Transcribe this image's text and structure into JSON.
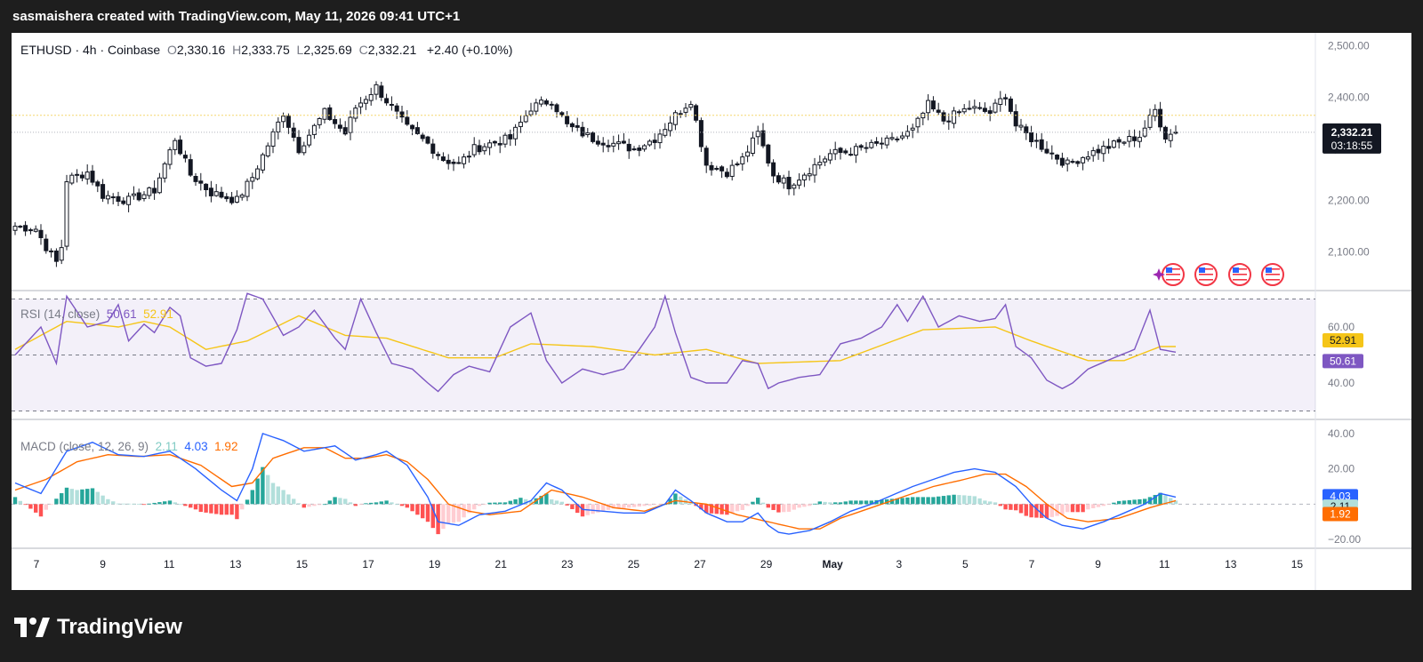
{
  "header": {
    "attribution": "sasmaishera created with TradingView.com, May 11, 2026 09:41 UTC+1"
  },
  "footer": {
    "brand": "TradingView"
  },
  "colors": {
    "bull": "#089981",
    "bear": "#f23645",
    "rsi": "#7e57c2",
    "rsi_ma": "#f5c518",
    "macd": "#2962ff",
    "signal": "#ff6d00",
    "hist_up_strong": "#26a69a",
    "hist_up_weak": "#b2dfdb",
    "hist_dn_strong": "#ff5252",
    "hist_dn_weak": "#ffcdd2"
  },
  "icons": [
    "tradingview-logo-icon",
    "us-flag-event-icon",
    "sparkle-icon"
  ],
  "chart_data": [
    {
      "type": "candlestick",
      "title": "ETHUSD · 4h · Coinbase",
      "ohlc_labels": [
        "O",
        "H",
        "L",
        "C"
      ],
      "ohlc_values": [
        "2,330.16",
        "2,333.75",
        "2,325.69",
        "2,332.21"
      ],
      "change": "+2.40 (+0.10%)",
      "y_ticks": [
        "2,500.00",
        "2,400.00",
        "2,300.00",
        "2,200.00",
        "2,100.00"
      ],
      "y_tick_values": [
        2500,
        2400,
        2300,
        2200,
        2100
      ],
      "ylim": [
        2025,
        2525
      ],
      "last_price_label": "2,332.21",
      "last_price": 2332.21,
      "countdown": "03:18:55",
      "x_ticks": [
        "7",
        "9",
        "11",
        "13",
        "15",
        "17",
        "19",
        "21",
        "23",
        "25",
        "27",
        "29",
        "May",
        "3",
        "5",
        "7",
        "9",
        "11",
        "13",
        "15"
      ],
      "anchor_closes": [
        [
          0,
          2150
        ],
        [
          4,
          2145
        ],
        [
          6,
          2110
        ],
        [
          8,
          2080
        ],
        [
          9,
          2110
        ],
        [
          10,
          2240
        ],
        [
          14,
          2255
        ],
        [
          17,
          2210
        ],
        [
          22,
          2200
        ],
        [
          27,
          2220
        ],
        [
          31,
          2320
        ],
        [
          34,
          2250
        ],
        [
          38,
          2215
        ],
        [
          43,
          2200
        ],
        [
          46,
          2245
        ],
        [
          52,
          2370
        ],
        [
          55,
          2300
        ],
        [
          60,
          2370
        ],
        [
          64,
          2330
        ],
        [
          66,
          2380
        ],
        [
          70,
          2420
        ],
        [
          73,
          2380
        ],
        [
          76,
          2340
        ],
        [
          80,
          2310
        ],
        [
          83,
          2280
        ],
        [
          86,
          2270
        ],
        [
          89,
          2300
        ],
        [
          92,
          2310
        ],
        [
          96,
          2320
        ],
        [
          100,
          2380
        ],
        [
          104,
          2395
        ],
        [
          107,
          2345
        ],
        [
          112,
          2320
        ],
        [
          116,
          2310
        ],
        [
          120,
          2300
        ],
        [
          124,
          2320
        ],
        [
          128,
          2365
        ],
        [
          131,
          2395
        ],
        [
          134,
          2270
        ],
        [
          138,
          2255
        ],
        [
          141,
          2280
        ],
        [
          144,
          2330
        ],
        [
          147,
          2250
        ],
        [
          150,
          2230
        ],
        [
          154,
          2260
        ],
        [
          158,
          2290
        ],
        [
          162,
          2295
        ],
        [
          166,
          2305
        ],
        [
          170,
          2315
        ],
        [
          174,
          2335
        ],
        [
          177,
          2385
        ],
        [
          180,
          2355
        ],
        [
          185,
          2380
        ],
        [
          189,
          2370
        ],
        [
          192,
          2405
        ],
        [
          194,
          2345
        ],
        [
          197,
          2320
        ],
        [
          201,
          2290
        ],
        [
          204,
          2270
        ],
        [
          208,
          2290
        ],
        [
          213,
          2308
        ],
        [
          218,
          2325
        ],
        [
          221,
          2375
        ],
        [
          223,
          2325
        ],
        [
          225,
          2332
        ]
      ],
      "candle_count": 226
    },
    {
      "type": "line",
      "title": "RSI (14, close)",
      "series": [
        {
          "name": "RSI",
          "value_label": "50.61"
        },
        {
          "name": "RSI-based MA",
          "value_label": "52.91"
        }
      ],
      "y_ticks": [
        "60.00",
        "40.00"
      ],
      "y_tick_values": [
        60,
        40
      ],
      "bands": [
        70,
        50,
        30
      ],
      "ylim": [
        27,
        73
      ],
      "rsi_anchors": [
        [
          0,
          50
        ],
        [
          5,
          60
        ],
        [
          8,
          47
        ],
        [
          10,
          71
        ],
        [
          14,
          60
        ],
        [
          18,
          62
        ],
        [
          20,
          68
        ],
        [
          22,
          55
        ],
        [
          25,
          61
        ],
        [
          27,
          58
        ],
        [
          30,
          67
        ],
        [
          32,
          64
        ],
        [
          34,
          49
        ],
        [
          37,
          46
        ],
        [
          40,
          47
        ],
        [
          43,
          59
        ],
        [
          45,
          72
        ],
        [
          48,
          70
        ],
        [
          52,
          57
        ],
        [
          55,
          60
        ],
        [
          58,
          66
        ],
        [
          62,
          56
        ],
        [
          64,
          52
        ],
        [
          67,
          70
        ],
        [
          70,
          58
        ],
        [
          73,
          47
        ],
        [
          77,
          45
        ],
        [
          80,
          40
        ],
        [
          82,
          37
        ],
        [
          85,
          43
        ],
        [
          88,
          46
        ],
        [
          92,
          44
        ],
        [
          96,
          60
        ],
        [
          100,
          65
        ],
        [
          103,
          48
        ],
        [
          106,
          40
        ],
        [
          110,
          45
        ],
        [
          114,
          43
        ],
        [
          118,
          45
        ],
        [
          121,
          52
        ],
        [
          124,
          60
        ],
        [
          126,
          71
        ],
        [
          128,
          58
        ],
        [
          131,
          42
        ],
        [
          134,
          40
        ],
        [
          138,
          40
        ],
        [
          141,
          48
        ],
        [
          144,
          47
        ],
        [
          146,
          38
        ],
        [
          148,
          40
        ],
        [
          152,
          42
        ],
        [
          156,
          43
        ],
        [
          160,
          54
        ],
        [
          164,
          56
        ],
        [
          168,
          60
        ],
        [
          171,
          68
        ],
        [
          173,
          62
        ],
        [
          176,
          71
        ],
        [
          179,
          60
        ],
        [
          183,
          64
        ],
        [
          187,
          62
        ],
        [
          190,
          63
        ],
        [
          192,
          68
        ],
        [
          194,
          53
        ],
        [
          197,
          49
        ],
        [
          200,
          41
        ],
        [
          203,
          38
        ],
        [
          205,
          40
        ],
        [
          208,
          45
        ],
        [
          213,
          49
        ],
        [
          217,
          52
        ],
        [
          220,
          66
        ],
        [
          222,
          52
        ],
        [
          225,
          51
        ]
      ],
      "ma_anchors": [
        [
          0,
          52
        ],
        [
          10,
          62
        ],
        [
          20,
          60
        ],
        [
          25,
          62
        ],
        [
          30,
          60
        ],
        [
          37,
          52
        ],
        [
          45,
          55
        ],
        [
          55,
          64
        ],
        [
          64,
          57
        ],
        [
          72,
          56
        ],
        [
          84,
          49
        ],
        [
          93,
          49
        ],
        [
          100,
          54
        ],
        [
          112,
          53
        ],
        [
          124,
          50
        ],
        [
          134,
          52
        ],
        [
          144,
          47
        ],
        [
          160,
          48
        ],
        [
          176,
          59
        ],
        [
          190,
          60
        ],
        [
          197,
          55
        ],
        [
          208,
          48
        ],
        [
          215,
          48
        ],
        [
          222,
          53
        ],
        [
          225,
          53
        ]
      ]
    },
    {
      "type": "bar+line",
      "title": "MACD (close, 12, 26, 9)",
      "series": [
        {
          "name": "Histogram",
          "value_label": "2.11"
        },
        {
          "name": "MACD",
          "value_label": "4.03"
        },
        {
          "name": "Signal",
          "value_label": "1.92"
        }
      ],
      "y_ticks": [
        "40.00",
        "20.00",
        "−20.00"
      ],
      "y_tick_values": [
        40,
        20,
        -20
      ],
      "zero_line": 0,
      "ylim": [
        -25,
        48
      ],
      "macd_anchors": [
        [
          0,
          12
        ],
        [
          5,
          6
        ],
        [
          10,
          30
        ],
        [
          15,
          35
        ],
        [
          20,
          28
        ],
        [
          25,
          27
        ],
        [
          30,
          30
        ],
        [
          35,
          20
        ],
        [
          40,
          8
        ],
        [
          43,
          2
        ],
        [
          46,
          20
        ],
        [
          48,
          40
        ],
        [
          52,
          36
        ],
        [
          56,
          30
        ],
        [
          62,
          33
        ],
        [
          66,
          25
        ],
        [
          70,
          28
        ],
        [
          72,
          30
        ],
        [
          76,
          22
        ],
        [
          80,
          4
        ],
        [
          82,
          -10
        ],
        [
          86,
          -12
        ],
        [
          90,
          -6
        ],
        [
          95,
          -4
        ],
        [
          100,
          2
        ],
        [
          103,
          12
        ],
        [
          106,
          8
        ],
        [
          110,
          -3
        ],
        [
          114,
          -4
        ],
        [
          118,
          -5
        ],
        [
          122,
          -5
        ],
        [
          126,
          0
        ],
        [
          128,
          8
        ],
        [
          131,
          2
        ],
        [
          134,
          -5
        ],
        [
          138,
          -10
        ],
        [
          141,
          -10
        ],
        [
          144,
          -5
        ],
        [
          146,
          -12
        ],
        [
          148,
          -16
        ],
        [
          150,
          -17
        ],
        [
          154,
          -15
        ],
        [
          158,
          -10
        ],
        [
          162,
          -4
        ],
        [
          166,
          0
        ],
        [
          170,
          5
        ],
        [
          174,
          10
        ],
        [
          178,
          14
        ],
        [
          182,
          18
        ],
        [
          186,
          20
        ],
        [
          190,
          18
        ],
        [
          194,
          10
        ],
        [
          197,
          0
        ],
        [
          200,
          -8
        ],
        [
          203,
          -12
        ],
        [
          207,
          -14
        ],
        [
          211,
          -10
        ],
        [
          215,
          -5
        ],
        [
          219,
          0
        ],
        [
          222,
          6
        ],
        [
          225,
          4
        ]
      ],
      "signal_anchors": [
        [
          0,
          8
        ],
        [
          6,
          14
        ],
        [
          12,
          24
        ],
        [
          18,
          28
        ],
        [
          24,
          27
        ],
        [
          30,
          28
        ],
        [
          36,
          22
        ],
        [
          42,
          10
        ],
        [
          46,
          12
        ],
        [
          50,
          26
        ],
        [
          56,
          32
        ],
        [
          60,
          32
        ],
        [
          64,
          26
        ],
        [
          68,
          26
        ],
        [
          72,
          28
        ],
        [
          76,
          24
        ],
        [
          80,
          14
        ],
        [
          84,
          0
        ],
        [
          88,
          -4
        ],
        [
          92,
          -6
        ],
        [
          98,
          -4
        ],
        [
          104,
          8
        ],
        [
          110,
          4
        ],
        [
          116,
          -2
        ],
        [
          122,
          -4
        ],
        [
          128,
          2
        ],
        [
          134,
          0
        ],
        [
          140,
          -6
        ],
        [
          146,
          -10
        ],
        [
          152,
          -14
        ],
        [
          156,
          -14
        ],
        [
          160,
          -8
        ],
        [
          166,
          -2
        ],
        [
          172,
          4
        ],
        [
          178,
          10
        ],
        [
          184,
          14
        ],
        [
          188,
          17
        ],
        [
          192,
          17
        ],
        [
          196,
          10
        ],
        [
          200,
          0
        ],
        [
          204,
          -8
        ],
        [
          208,
          -10
        ],
        [
          214,
          -8
        ],
        [
          220,
          -2
        ],
        [
          225,
          2
        ]
      ]
    }
  ]
}
